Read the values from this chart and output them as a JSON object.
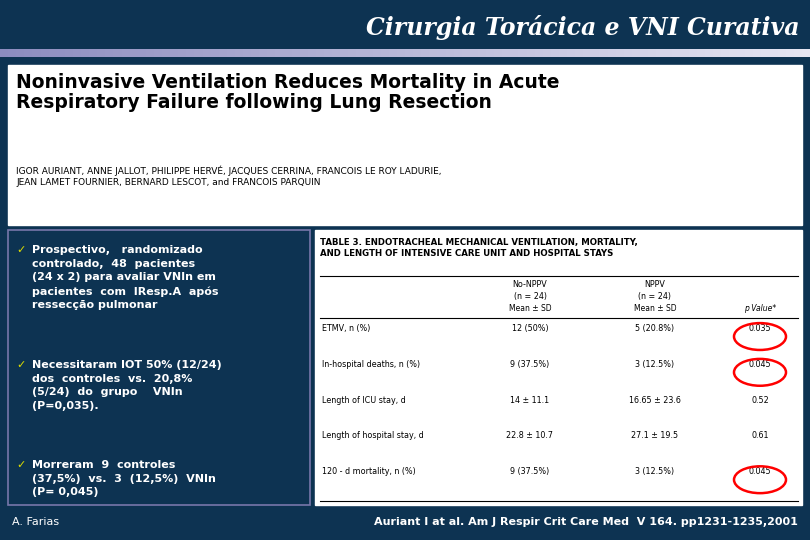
{
  "bg_color": "#0d3352",
  "title": "Cirurgia Torácica e VNI Curativa",
  "title_color": "#ffffff",
  "title_fontsize": 17,
  "article_title": "Noninvasive Ventilation Reduces Mortality in Acute\nRespiratory Failure following Lung Resection",
  "article_title_fontsize": 13.5,
  "article_authors": "IGOR AURIANT, ANNE JALLOT, PHILIPPE HERVÉ, JACQUES CERRINA, FRANCOIS LE ROY LADURIE,\nJEAN LAMET FOURNIER, BERNARD LESCOT, and FRANCOIS PARQUIN",
  "article_authors_fontsize": 6.5,
  "bullet_points": [
    "Prospectivo,   randomizado\ncontrolado,  48  pacientes\n(24 x 2) para avaliar VNIn em\npacientes  com  IResp.A  após\nressecção pulmonar",
    "Necessitaram IOT 50% (12/24)\ndos  controles  vs.  20,8%\n(5/24)  do  grupo    VNIn\n(P=0,035).",
    "Morreram  9  controles\n(37,5%)  vs.  3  (12,5%)  VNIn\n(P= 0,045)"
  ],
  "bullet_color": "#ffffff",
  "bullet_fontsize": 8.0,
  "table_title": "TABLE 3. ENDOTRACHEAL MECHANICAL VENTILATION, MORTALITY,\nAND LENGTH OF INTENSIVE CARE UNIT AND HOSPITAL STAYS",
  "table_title_fontsize": 6.2,
  "col_header_1": "No-NPPV",
  "col_header_2": "NPPV",
  "col_subheader": "(n = 24)",
  "col_mean": "Mean ± SD",
  "col_pvalue": "p Value*",
  "table_rows": [
    [
      "ETMV, n (%)",
      "12 (50%)",
      "5 (20.8%)",
      "0.035",
      true
    ],
    [
      "In-hospital deaths, n (%)",
      "9 (37.5%)",
      "3 (12.5%)",
      "0.045",
      true
    ],
    [
      "Length of ICU stay, d",
      "14 ± 11.1",
      "16.65 ± 23.6",
      "0.52",
      false
    ],
    [
      "Length of hospital stay, d",
      "22.8 ± 10.7",
      "27.1 ± 19.5",
      "0.61",
      false
    ],
    [
      "120 - d mortality, n (%)",
      "9 (37.5%)",
      "3 (12.5%)",
      "0.045",
      true
    ]
  ],
  "table_row_fontsize": 5.8,
  "footer_left": "A. Farias",
  "footer_right": "Auriant I at al. Am J Respir Crit Care Med  V 164. pp1231-1235,2001",
  "footer_color": "#ffffff",
  "footer_fontsize": 8.0,
  "separator_color_left": "#9090c0",
  "separator_color_right": "#c8c8e8"
}
